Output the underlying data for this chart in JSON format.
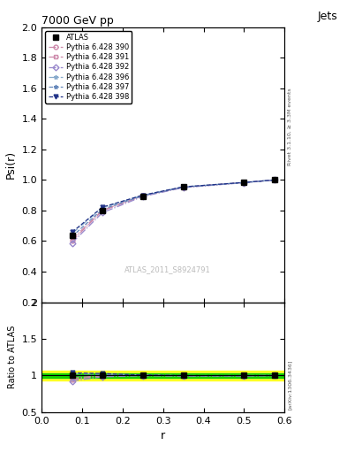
{
  "title": "7000 GeV pp",
  "title_right": "Jets",
  "xlabel": "r",
  "ylabel_main": "Psi(r)",
  "ylabel_ratio": "Ratio to ATLAS",
  "right_label1": "Rivet 3.1.10, ≥ 3.3M events",
  "right_label2": "[arXiv:1306.3436]",
  "watermark": "ATLAS_2011_S8924791",
  "x": [
    0.075,
    0.15,
    0.25,
    0.35,
    0.5,
    0.575
  ],
  "atlas_y": [
    0.635,
    0.8,
    0.895,
    0.955,
    0.985,
    1.0
  ],
  "atlas_yerr": [
    0.012,
    0.008,
    0.005,
    0.004,
    0.003,
    0.002
  ],
  "series": [
    {
      "label": "Pythia 6.428 390",
      "color": "#cc88aa",
      "marker": "o",
      "linestyle": "-.",
      "y": [
        0.6,
        0.798,
        0.896,
        0.952,
        0.983,
        1.0
      ]
    },
    {
      "label": "Pythia 6.428 391",
      "color": "#cc88aa",
      "marker": "s",
      "linestyle": "-.",
      "y": [
        0.612,
        0.802,
        0.897,
        0.953,
        0.984,
        1.0
      ]
    },
    {
      "label": "Pythia 6.428 392",
      "color": "#9988cc",
      "marker": "D",
      "linestyle": "-.",
      "y": [
        0.588,
        0.786,
        0.892,
        0.95,
        0.982,
        1.0
      ]
    },
    {
      "label": "Pythia 6.428 396",
      "color": "#88aacc",
      "marker": "*",
      "linestyle": "-.",
      "y": [
        0.65,
        0.818,
        0.9,
        0.955,
        0.984,
        1.0
      ]
    },
    {
      "label": "Pythia 6.428 397",
      "color": "#6688bb",
      "marker": "*",
      "linestyle": "--",
      "y": [
        0.63,
        0.808,
        0.897,
        0.953,
        0.983,
        1.0
      ]
    },
    {
      "label": "Pythia 6.428 398",
      "color": "#223388",
      "marker": "v",
      "linestyle": "--",
      "y": [
        0.658,
        0.822,
        0.901,
        0.955,
        0.984,
        1.0
      ]
    }
  ],
  "ylim_main": [
    0.2,
    2.0
  ],
  "ylim_ratio": [
    0.5,
    2.0
  ],
  "xlim": [
    0.0,
    0.6
  ],
  "main_yticks": [
    0.2,
    0.4,
    0.6,
    0.8,
    1.0,
    1.2,
    1.4,
    1.6,
    1.8,
    2.0
  ],
  "ratio_yticks": [
    0.5,
    1.0,
    1.5,
    2.0
  ],
  "green_band_lo": 0.97,
  "green_band_hi": 1.03,
  "yellow_band_lo": 0.93,
  "yellow_band_hi": 1.07
}
